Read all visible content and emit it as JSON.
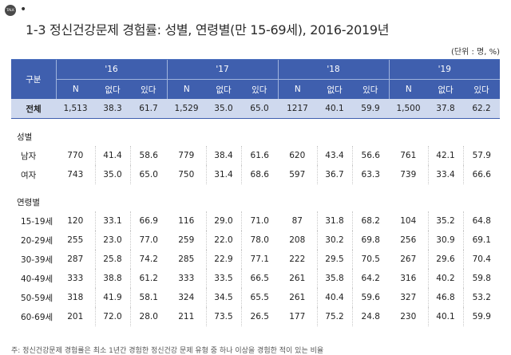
{
  "icon": {
    "talk_label": "TALK"
  },
  "title": "1-3 정신건강문제 경험률: 성별, 연령별(만 15-69세), 2016-2019년",
  "unit": "(단위 : 명, %)",
  "table": {
    "corner": "구분",
    "years": [
      "'16",
      "'17",
      "'18",
      "'19"
    ],
    "subheaders": [
      "N",
      "없다",
      "있다"
    ],
    "total": {
      "label": "전체",
      "values": [
        "1,513",
        "38.3",
        "61.7",
        "1,529",
        "35.0",
        "65.0",
        "1217",
        "40.1",
        "59.9",
        "1,500",
        "37.8",
        "62.2"
      ]
    },
    "sex_section": "성별",
    "sex_rows": [
      {
        "label": "남자",
        "values": [
          "770",
          "41.4",
          "58.6",
          "779",
          "38.4",
          "61.6",
          "620",
          "43.4",
          "56.6",
          "761",
          "42.1",
          "57.9"
        ]
      },
      {
        "label": "여자",
        "values": [
          "743",
          "35.0",
          "65.0",
          "750",
          "31.4",
          "68.6",
          "597",
          "36.7",
          "63.3",
          "739",
          "33.4",
          "66.6"
        ]
      }
    ],
    "age_section": "연령별",
    "age_rows": [
      {
        "label": "15-19세",
        "values": [
          "120",
          "33.1",
          "66.9",
          "116",
          "29.0",
          "71.0",
          "87",
          "31.8",
          "68.2",
          "104",
          "35.2",
          "64.8"
        ]
      },
      {
        "label": "20-29세",
        "values": [
          "255",
          "23.0",
          "77.0",
          "259",
          "22.0",
          "78.0",
          "208",
          "30.2",
          "69.8",
          "256",
          "30.9",
          "69.1"
        ]
      },
      {
        "label": "30-39세",
        "values": [
          "287",
          "25.8",
          "74.2",
          "285",
          "22.9",
          "77.1",
          "222",
          "29.5",
          "70.5",
          "267",
          "29.6",
          "70.4"
        ]
      },
      {
        "label": "40-49세",
        "values": [
          "333",
          "38.8",
          "61.2",
          "333",
          "33.5",
          "66.5",
          "261",
          "35.8",
          "64.2",
          "316",
          "40.2",
          "59.8"
        ]
      },
      {
        "label": "50-59세",
        "values": [
          "318",
          "41.9",
          "58.1",
          "324",
          "34.5",
          "65.5",
          "261",
          "40.4",
          "59.6",
          "327",
          "46.8",
          "53.2"
        ]
      },
      {
        "label": "60-69세",
        "values": [
          "201",
          "72.0",
          "28.0",
          "211",
          "73.5",
          "26.5",
          "177",
          "75.2",
          "24.8",
          "230",
          "40.1",
          "59.9"
        ]
      }
    ]
  },
  "footer": "주: 정신건강문제 경험률은 최소 1년간 경험한 정신건강 문제 유형 중 하나 이상을 경험한 적이 있는 비율"
}
